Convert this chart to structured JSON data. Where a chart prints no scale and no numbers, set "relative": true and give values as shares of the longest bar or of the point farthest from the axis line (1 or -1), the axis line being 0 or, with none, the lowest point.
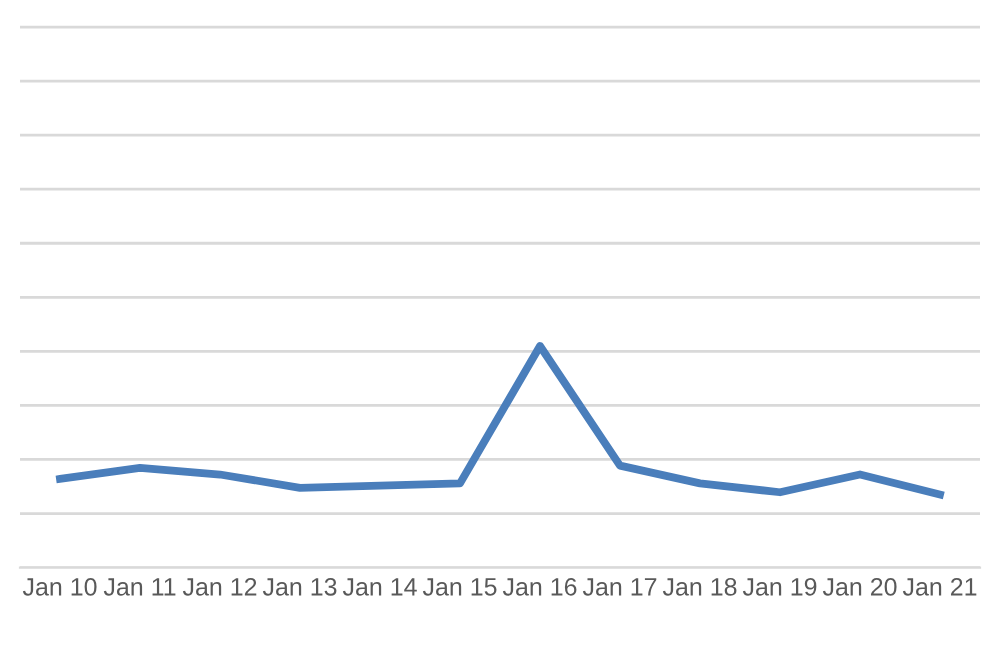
{
  "chart_data": {
    "type": "line",
    "relative": true,
    "grid": "y",
    "marker": "none",
    "line_style": "solid",
    "categories": [
      "Jan 10",
      "Jan 11",
      "Jan 12",
      "Jan 13",
      "Jan 14",
      "Jan 15",
      "Jan 16",
      "Jan 17",
      "Jan 18",
      "Jan 19",
      "Jan 20",
      "Jan 21"
    ],
    "series": [
      {
        "color": "#4a7ebb",
        "values": [
          0.4,
          0.45,
          0.42,
          0.36,
          0.37,
          0.38,
          1,
          0.46,
          0.38,
          0.34,
          0.42,
          0.33
        ]
      }
    ]
  }
}
